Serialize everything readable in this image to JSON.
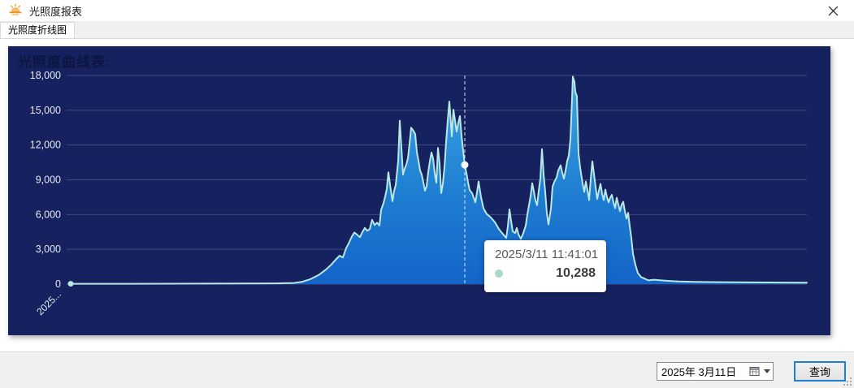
{
  "window": {
    "title": "光照度报表"
  },
  "tabs": [
    {
      "label": "光照度折线图",
      "active": true
    }
  ],
  "chart": {
    "title": "光照度曲线表:",
    "colors": {
      "panel_bg": "#162160",
      "title": "#0c163f",
      "line": "#b9e8e3",
      "area_top": "#3fa7e4",
      "area_mid": "#1f7fd2",
      "area_bottom": "#1464c8",
      "grid": "rgba(152,162,192,0.32)",
      "axis_label": "#e6eaf2",
      "hover_line": "#ffffff",
      "marker": "#ffffff",
      "tooltip_dot": "#a9d9c5"
    }
  },
  "chart_data": {
    "type": "area",
    "title": "光照度曲线表:",
    "ylabel": "",
    "xlabel": "",
    "ylim": [
      0,
      18000
    ],
    "yticks": [
      0,
      3000,
      6000,
      9000,
      12000,
      15000,
      18000
    ],
    "x_axis_first_label": "2025...",
    "grid": true,
    "hover": {
      "x": 562,
      "time": "2025/3/11 11:41:01",
      "value": 10288
    },
    "points": [
      [
        77,
        30
      ],
      [
        150,
        30
      ],
      [
        250,
        40
      ],
      [
        330,
        60
      ],
      [
        352,
        100
      ],
      [
        362,
        200
      ],
      [
        372,
        430
      ],
      [
        382,
        780
      ],
      [
        391,
        1250
      ],
      [
        398,
        1700
      ],
      [
        403,
        2100
      ],
      [
        408,
        2450
      ],
      [
        412,
        2300
      ],
      [
        416,
        3100
      ],
      [
        419,
        3500
      ],
      [
        423,
        4100
      ],
      [
        426,
        4450
      ],
      [
        429,
        4300
      ],
      [
        433,
        4050
      ],
      [
        436,
        4500
      ],
      [
        439,
        4850
      ],
      [
        442,
        4600
      ],
      [
        445,
        4750
      ],
      [
        448,
        5550
      ],
      [
        451,
        5100
      ],
      [
        454,
        5300
      ],
      [
        457,
        5050
      ],
      [
        459,
        6400
      ],
      [
        462,
        7000
      ],
      [
        464,
        7550
      ],
      [
        466,
        8200
      ],
      [
        468,
        9650
      ],
      [
        470,
        8600
      ],
      [
        473,
        7150
      ],
      [
        475,
        8050
      ],
      [
        477,
        8550
      ],
      [
        480,
        10600
      ],
      [
        482,
        14100
      ],
      [
        484,
        11800
      ],
      [
        486,
        9450
      ],
      [
        488,
        9950
      ],
      [
        490,
        10300
      ],
      [
        492,
        10850
      ],
      [
        494,
        12100
      ],
      [
        496,
        13500
      ],
      [
        499,
        13200
      ],
      [
        501,
        12950
      ],
      [
        503,
        11400
      ],
      [
        505,
        10650
      ],
      [
        507,
        9800
      ],
      [
        509,
        9450
      ],
      [
        511,
        8800
      ],
      [
        513,
        8050
      ],
      [
        515,
        8450
      ],
      [
        517,
        9650
      ],
      [
        519,
        10600
      ],
      [
        521,
        11350
      ],
      [
        523,
        10850
      ],
      [
        525,
        9550
      ],
      [
        527,
        8750
      ],
      [
        529,
        11750
      ],
      [
        531,
        10400
      ],
      [
        533,
        7850
      ],
      [
        535,
        8650
      ],
      [
        537,
        10100
      ],
      [
        539,
        12250
      ],
      [
        541,
        14100
      ],
      [
        543,
        15750
      ],
      [
        545,
        13800
      ],
      [
        546,
        12750
      ],
      [
        548,
        15050
      ],
      [
        550,
        14100
      ],
      [
        552,
        13150
      ],
      [
        554,
        13900
      ],
      [
        556,
        14500
      ],
      [
        558,
        12800
      ],
      [
        560,
        11500
      ],
      [
        562,
        10288
      ],
      [
        564,
        9600
      ],
      [
        566,
        8800
      ],
      [
        568,
        8100
      ],
      [
        571,
        7850
      ],
      [
        573,
        7450
      ],
      [
        575,
        7050
      ],
      [
        577,
        7900
      ],
      [
        579,
        8850
      ],
      [
        582,
        7500
      ],
      [
        585,
        6550
      ],
      [
        589,
        6050
      ],
      [
        594,
        5750
      ],
      [
        599,
        5350
      ],
      [
        604,
        4750
      ],
      [
        608,
        4400
      ],
      [
        611,
        4150
      ],
      [
        613,
        3980
      ],
      [
        615,
        5000
      ],
      [
        617,
        6450
      ],
      [
        619,
        5450
      ],
      [
        621,
        4550
      ],
      [
        624,
        4400
      ],
      [
        626,
        4850
      ],
      [
        628,
        4300
      ],
      [
        631,
        3900
      ],
      [
        634,
        4400
      ],
      [
        637,
        5050
      ],
      [
        639,
        6000
      ],
      [
        641,
        6800
      ],
      [
        643,
        7600
      ],
      [
        645,
        8700
      ],
      [
        647,
        8000
      ],
      [
        649,
        7200
      ],
      [
        651,
        6800
      ],
      [
        653,
        8050
      ],
      [
        655,
        9100
      ],
      [
        657,
        11650
      ],
      [
        659,
        9500
      ],
      [
        661,
        7950
      ],
      [
        663,
        6100
      ],
      [
        665,
        5150
      ],
      [
        668,
        6500
      ],
      [
        670,
        8400
      ],
      [
        672,
        8800
      ],
      [
        675,
        9200
      ],
      [
        677,
        9800
      ],
      [
        680,
        10250
      ],
      [
        682,
        9600
      ],
      [
        684,
        9100
      ],
      [
        686,
        9800
      ],
      [
        688,
        10600
      ],
      [
        690,
        11100
      ],
      [
        692,
        12500
      ],
      [
        694,
        16000
      ],
      [
        695,
        17900
      ],
      [
        697,
        17450
      ],
      [
        698,
        16600
      ],
      [
        700,
        16200
      ],
      [
        702,
        11300
      ],
      [
        704,
        10050
      ],
      [
        707,
        8700
      ],
      [
        709,
        7950
      ],
      [
        711,
        8850
      ],
      [
        713,
        8100
      ],
      [
        715,
        7250
      ],
      [
        717,
        9050
      ],
      [
        719,
        10600
      ],
      [
        721,
        9500
      ],
      [
        723,
        8400
      ],
      [
        725,
        7350
      ],
      [
        727,
        8050
      ],
      [
        729,
        8650
      ],
      [
        731,
        7800
      ],
      [
        733,
        7250
      ],
      [
        735,
        8150
      ],
      [
        737,
        7500
      ],
      [
        739,
        7050
      ],
      [
        741,
        7450
      ],
      [
        743,
        7700
      ],
      [
        745,
        7050
      ],
      [
        747,
        6550
      ],
      [
        749,
        7450
      ],
      [
        751,
        6850
      ],
      [
        753,
        6300
      ],
      [
        755,
        6850
      ],
      [
        757,
        7100
      ],
      [
        759,
        6300
      ],
      [
        761,
        5650
      ],
      [
        763,
        6150
      ],
      [
        765,
        5000
      ],
      [
        767,
        3980
      ],
      [
        769,
        2600
      ],
      [
        772,
        1650
      ],
      [
        775,
        950
      ],
      [
        779,
        600
      ],
      [
        783,
        480
      ],
      [
        788,
        320
      ],
      [
        795,
        380
      ],
      [
        802,
        330
      ],
      [
        812,
        280
      ],
      [
        825,
        230
      ],
      [
        845,
        190
      ],
      [
        875,
        165
      ],
      [
        915,
        145
      ],
      [
        955,
        130
      ],
      [
        983,
        120
      ]
    ]
  },
  "tooltip": {
    "datetime": "2025/3/11 11:41:01",
    "value": "10,288"
  },
  "footer": {
    "date_value": "2025年 3月11日",
    "query_label": "查询"
  }
}
